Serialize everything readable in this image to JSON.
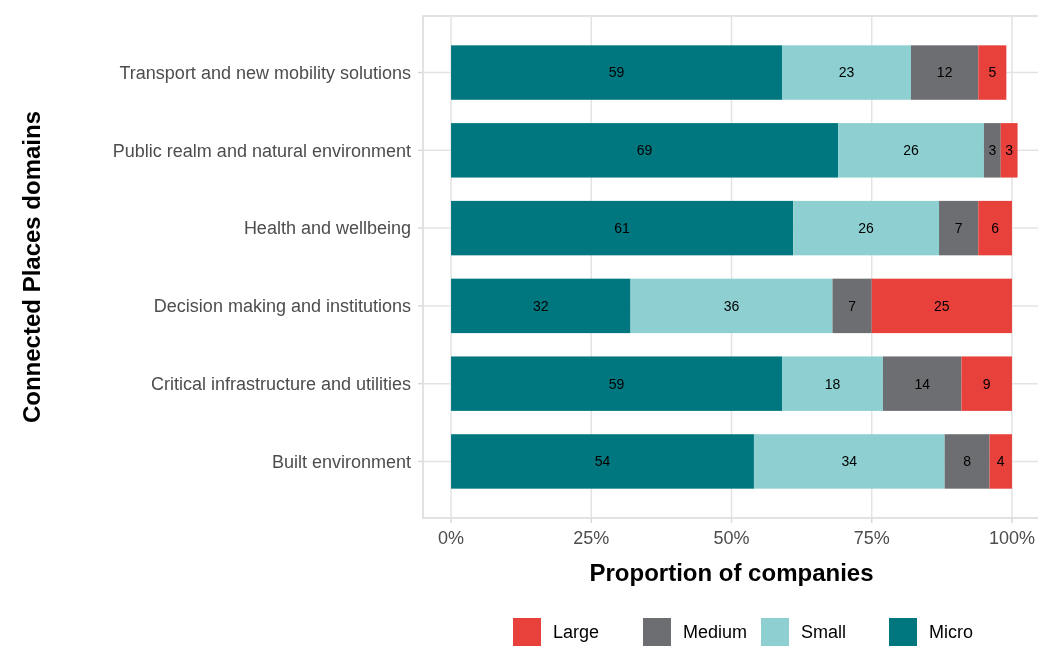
{
  "chart_data": {
    "type": "bar",
    "orientation": "horizontal",
    "stacked": true,
    "xlabel": "Proportion of companies",
    "ylabel": "Connected Places domains",
    "categories": [
      "Transport and new mobility solutions",
      "Public realm and natural environment",
      "Health and wellbeing",
      "Decision making and institutions",
      "Critical infrastructure and utilities",
      "Built environment"
    ],
    "series": [
      {
        "name": "Micro",
        "color": "#00777f",
        "values": [
          59,
          69,
          61,
          32,
          59,
          54
        ]
      },
      {
        "name": "Small",
        "color": "#8ed0d1",
        "values": [
          23,
          26,
          26,
          36,
          18,
          34
        ]
      },
      {
        "name": "Medium",
        "color": "#6d6e71",
        "values": [
          12,
          3,
          7,
          7,
          14,
          8
        ]
      },
      {
        "name": "Large",
        "color": "#e8403a",
        "values": [
          5,
          3,
          6,
          25,
          9,
          4
        ]
      }
    ],
    "xlim": [
      -5,
      105
    ],
    "xticks": [
      {
        "value": 0,
        "label": "0%"
      },
      {
        "value": 25,
        "label": "25%"
      },
      {
        "value": 50,
        "label": "50%"
      },
      {
        "value": 75,
        "label": "75%"
      },
      {
        "value": 100,
        "label": "100%"
      }
    ],
    "data_labels": true,
    "grid": true,
    "legend": "bottom"
  }
}
